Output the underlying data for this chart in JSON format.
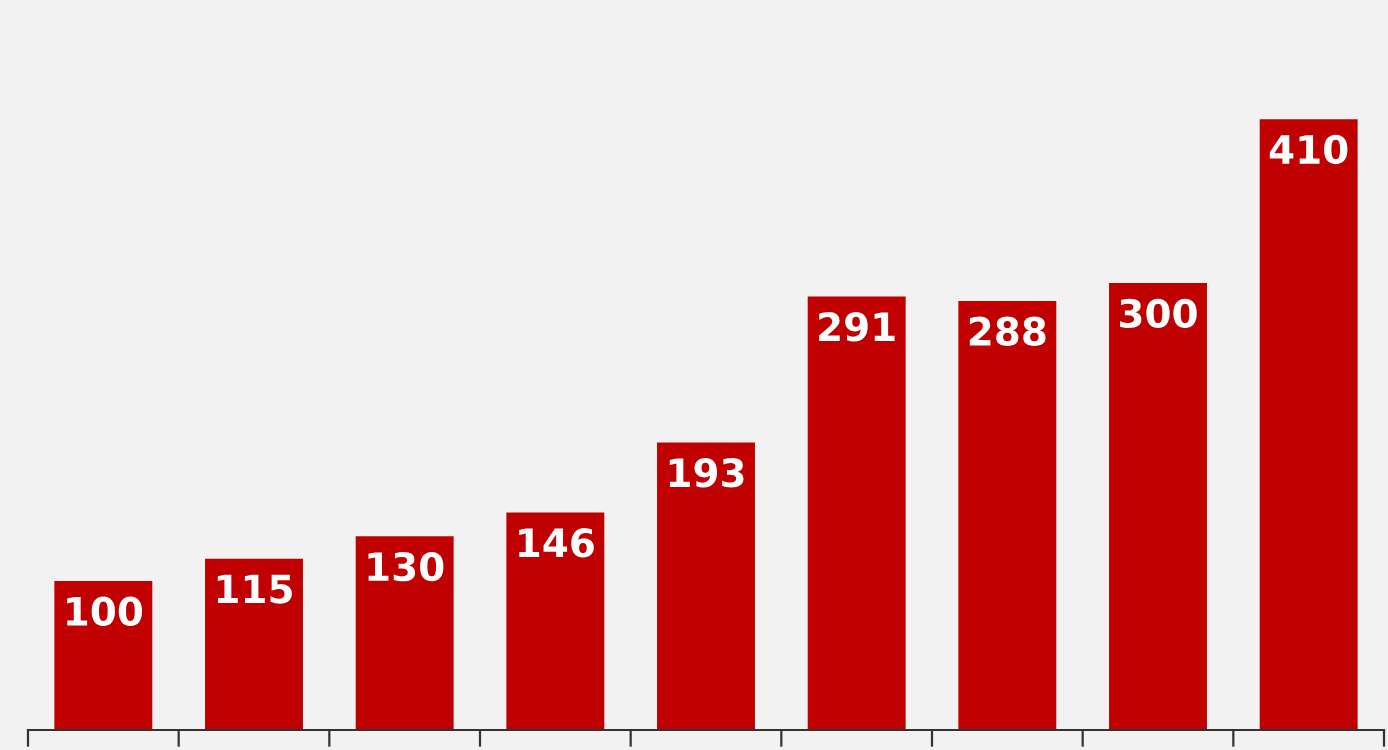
{
  "chart_data": {
    "type": "bar",
    "categories": [
      null,
      null,
      null,
      null,
      null,
      null,
      null,
      null,
      null
    ],
    "values": [
      100,
      115,
      130,
      146,
      193,
      291,
      288,
      300,
      410
    ],
    "color": "#c00000",
    "ylim": [
      0,
      490
    ],
    "data_labels": true,
    "grid": false,
    "legend": false
  }
}
